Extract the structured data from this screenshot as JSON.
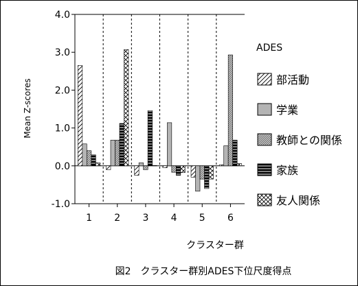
{
  "chart_data": {
    "type": "bar",
    "title": "",
    "xlabel": "クラスター群",
    "ylabel": "Mean Z-scores",
    "ylim": [
      -1.0,
      4.0
    ],
    "yticks": [
      "4.0",
      "3.0",
      "2.0",
      "1.0",
      "0.0",
      "-1.0"
    ],
    "ytick_values": [
      4.0,
      3.0,
      2.0,
      1.0,
      0.0,
      -1.0
    ],
    "categories": [
      "1",
      "2",
      "3",
      "4",
      "5",
      "6"
    ],
    "legend_title": "ADES",
    "legend_position": "right",
    "series": [
      {
        "name": "部活動",
        "pattern": "diag-sparse",
        "values": [
          2.65,
          -0.1,
          -0.25,
          -0.05,
          -0.3,
          0.03
        ]
      },
      {
        "name": "学業",
        "pattern": "gray",
        "values": [
          0.58,
          0.68,
          0.08,
          1.14,
          -0.67,
          0.53
        ]
      },
      {
        "name": "教師との関係",
        "pattern": "diag-dense",
        "values": [
          0.4,
          0.68,
          -0.1,
          -0.17,
          -0.35,
          2.93
        ]
      },
      {
        "name": "家族",
        "pattern": "black-stripe",
        "values": [
          0.29,
          1.12,
          1.46,
          -0.25,
          -0.6,
          0.68
        ]
      },
      {
        "name": "友人関係",
        "pattern": "crosshatch",
        "values": [
          0.08,
          3.07,
          0.01,
          -0.18,
          -0.35,
          0.06
        ]
      }
    ]
  },
  "caption": "図2　クラスター群別ADES下位尺度得点"
}
